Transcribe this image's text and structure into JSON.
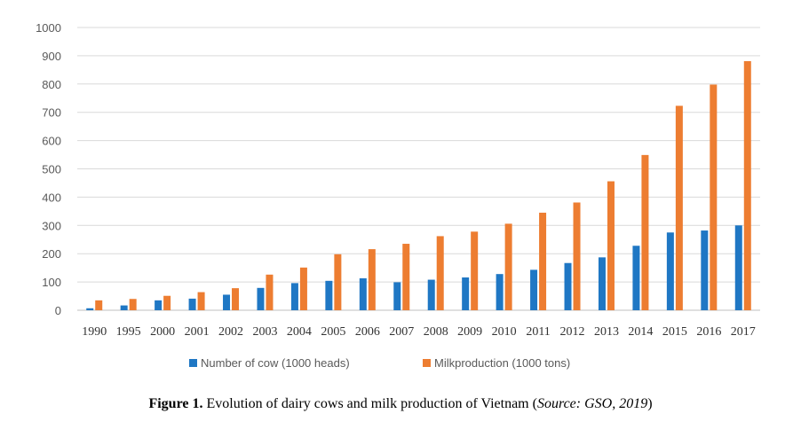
{
  "chart_data": {
    "type": "bar",
    "categories": [
      "1990",
      "1995",
      "2000",
      "2001",
      "2002",
      "2003",
      "2004",
      "2005",
      "2006",
      "2007",
      "2008",
      "2009",
      "2010",
      "2011",
      "2012",
      "2013",
      "2014",
      "2015",
      "2016",
      "2017"
    ],
    "series": [
      {
        "name": "Number of cow (1000 heads)",
        "color": "#1f77c4",
        "values": [
          7,
          17,
          35,
          41,
          55,
          79,
          96,
          104,
          113,
          99,
          108,
          116,
          128,
          143,
          167,
          187,
          228,
          275,
          282,
          300
        ]
      },
      {
        "name": "Milkproduction  (1000 tons)",
        "color": "#ed7d31",
        "values": [
          35,
          40,
          51,
          64,
          78,
          126,
          151,
          198,
          216,
          235,
          262,
          278,
          306,
          345,
          381,
          456,
          549,
          723,
          798,
          881
        ]
      }
    ],
    "yticks": [
      "0",
      "100",
      "200",
      "300",
      "400",
      "500",
      "600",
      "700",
      "800",
      "900",
      "1000"
    ],
    "ylim": [
      0,
      1000
    ],
    "grid": true,
    "legend_position": "bottom"
  },
  "caption": {
    "label": "Figure 1.",
    "text": " Evolution of dairy cows and milk production of Vietnam (",
    "source": "Source: GSO, 2019",
    "close": ")"
  }
}
